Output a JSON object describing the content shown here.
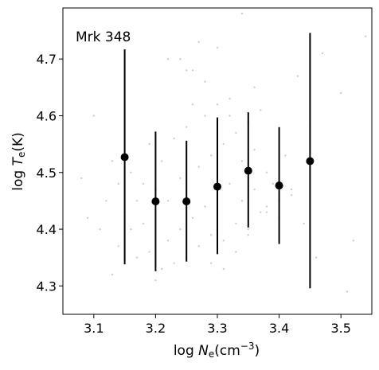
{
  "chart_data": {
    "type": "scatter",
    "annotation": "Mrk 348",
    "xlabel": {
      "prefix": "log ",
      "var": "N",
      "sub": "e",
      "unit": "(cm",
      "sup": "−3",
      "close": ")"
    },
    "ylabel": {
      "prefix": "log ",
      "var": "T",
      "sub": "e",
      "unit": "(K)"
    },
    "xlim": [
      3.05,
      3.55
    ],
    "ylim": [
      4.25,
      4.79
    ],
    "xticks": [
      3.1,
      3.2,
      3.3,
      3.4,
      3.5
    ],
    "xtick_labels": [
      "3.1",
      "3.2",
      "3.3",
      "3.4",
      "3.5"
    ],
    "yticks": [
      4.3,
      4.4,
      4.5,
      4.6,
      4.7
    ],
    "ytick_labels": [
      "4.3",
      "4.4",
      "4.5",
      "4.6",
      "4.7"
    ],
    "grid": false,
    "series": [
      {
        "kind": "binned_means_with_error_bars",
        "color": "#000000",
        "x": [
          3.15,
          3.2,
          3.25,
          3.3,
          3.35,
          3.4,
          3.45
        ],
        "y": [
          4.527,
          4.449,
          4.449,
          4.475,
          4.503,
          4.477,
          4.52
        ],
        "y_low": [
          4.338,
          4.326,
          4.343,
          4.356,
          4.403,
          4.374,
          4.296
        ],
        "y_high": [
          4.717,
          4.572,
          4.556,
          4.597,
          4.606,
          4.58,
          4.746
        ]
      },
      {
        "kind": "background_points",
        "color": "#cccccc",
        "x": [
          3.08,
          3.09,
          3.1,
          3.11,
          3.12,
          3.13,
          3.13,
          3.14,
          3.14,
          3.15,
          3.15,
          3.16,
          3.16,
          3.17,
          3.17,
          3.18,
          3.18,
          3.19,
          3.19,
          3.2,
          3.2,
          3.21,
          3.21,
          3.22,
          3.22,
          3.23,
          3.23,
          3.24,
          3.24,
          3.25,
          3.25,
          3.26,
          3.26,
          3.27,
          3.27,
          3.28,
          3.28,
          3.29,
          3.29,
          3.3,
          3.3,
          3.31,
          3.31,
          3.32,
          3.32,
          3.33,
          3.33,
          3.34,
          3.34,
          3.35,
          3.35,
          3.36,
          3.36,
          3.37,
          3.37,
          3.38,
          3.38,
          3.39,
          3.4,
          3.41,
          3.42,
          3.43,
          3.45,
          3.47,
          3.5,
          3.51,
          3.52,
          3.54,
          3.24,
          3.26,
          3.28,
          3.3,
          3.32,
          3.34,
          3.36,
          3.29,
          3.31,
          3.33,
          3.35,
          3.22,
          3.25,
          3.27,
          3.38,
          3.4,
          3.42,
          3.44,
          3.46
        ],
        "y": [
          4.49,
          4.42,
          4.6,
          4.4,
          4.45,
          4.32,
          4.52,
          4.37,
          4.48,
          4.43,
          4.58,
          4.4,
          4.5,
          4.45,
          4.35,
          4.48,
          4.41,
          4.55,
          4.36,
          4.31,
          4.47,
          4.33,
          4.52,
          4.38,
          4.45,
          4.34,
          4.56,
          4.4,
          4.49,
          4.35,
          4.58,
          4.42,
          4.62,
          4.37,
          4.51,
          4.44,
          4.6,
          4.39,
          4.53,
          4.46,
          4.62,
          4.38,
          4.55,
          4.48,
          4.6,
          4.41,
          4.57,
          4.45,
          4.52,
          4.4,
          4.59,
          4.47,
          4.54,
          4.43,
          4.61,
          4.5,
          4.44,
          4.48,
          4.42,
          4.53,
          4.47,
          4.67,
          4.58,
          4.71,
          4.64,
          4.29,
          4.38,
          4.74,
          4.7,
          4.68,
          4.66,
          4.72,
          4.63,
          4.78,
          4.65,
          4.34,
          4.33,
          4.36,
          4.39,
          4.7,
          4.68,
          4.73,
          4.43,
          4.45,
          4.46,
          4.41,
          4.35
        ]
      }
    ]
  }
}
